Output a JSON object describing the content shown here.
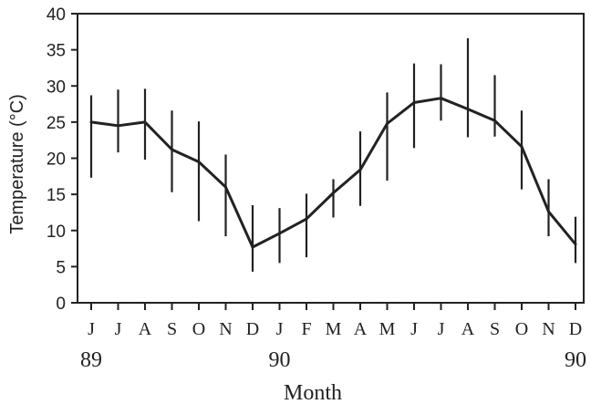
{
  "chart_data": {
    "type": "line",
    "title": "",
    "xlabel": "Month",
    "ylabel": "Temperature (°C)",
    "ylim": [
      0,
      40
    ],
    "yticks": [
      0,
      5,
      10,
      15,
      20,
      25,
      30,
      35,
      40
    ],
    "grid": false,
    "legend": "none",
    "categories": [
      "J",
      "J",
      "A",
      "S",
      "O",
      "N",
      "D",
      "J",
      "F",
      "M",
      "A",
      "M",
      "J",
      "J",
      "A",
      "S",
      "O",
      "N",
      "D"
    ],
    "year_labels": [
      {
        "label": "89",
        "category_index": 0
      },
      {
        "label": "90",
        "category_index": 7
      },
      {
        "label": "90",
        "category_index": 18
      }
    ],
    "series": [
      {
        "values": [
          25.0,
          24.5,
          25.0,
          21.2,
          19.5,
          16.0,
          7.7,
          9.6,
          11.6,
          15.2,
          18.4,
          24.8,
          27.7,
          28.3,
          26.8,
          25.2,
          21.6,
          12.6,
          8.1
        ],
        "error_low": [
          17.3,
          20.8,
          19.8,
          15.3,
          11.3,
          9.2,
          4.3,
          5.5,
          6.3,
          11.8,
          13.4,
          16.9,
          21.4,
          25.2,
          22.9,
          23.0,
          15.7,
          9.2,
          5.5
        ],
        "error_high": [
          28.7,
          29.5,
          29.6,
          26.6,
          25.1,
          20.5,
          13.5,
          13.1,
          15.1,
          17.1,
          23.7,
          29.1,
          33.1,
          33.0,
          36.6,
          31.5,
          26.6,
          17.1,
          11.9
        ]
      }
    ],
    "colors": {
      "line": "#222222",
      "axis": "#222222",
      "text": "#222222"
    }
  }
}
